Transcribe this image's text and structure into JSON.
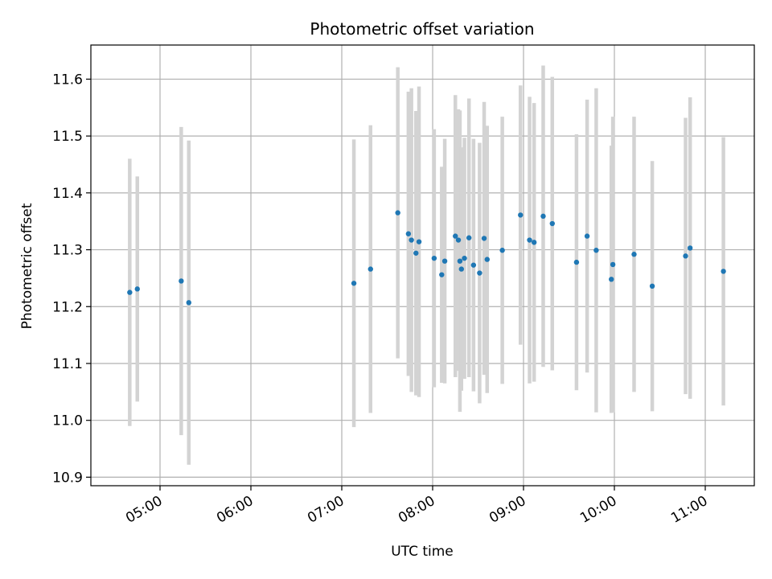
{
  "chart_data": {
    "type": "scatter",
    "title": "Photometric offset variation",
    "xlabel": "UTC time",
    "ylabel": "Photometric offset",
    "x_unit": "UTC hh:mm",
    "xlim": [
      "04:40",
      "12:00"
    ],
    "ylim": [
      10.885,
      11.66
    ],
    "x_ticks": [
      "05:00",
      "06:00",
      "07:00",
      "08:00",
      "09:00",
      "10:00",
      "11:00"
    ],
    "y_ticks": [
      10.9,
      11.0,
      11.1,
      11.2,
      11.3,
      11.4,
      11.5,
      11.6
    ],
    "grid": true,
    "legend": "none",
    "colors": {
      "point": "#1f77b4",
      "errorbar": "#d3d3d3",
      "grid": "#b0b0b0"
    },
    "points": [
      {
        "x": "04:40",
        "y": 11.225,
        "err": 0.235
      },
      {
        "x": "04:45",
        "y": 11.231,
        "err": 0.198
      },
      {
        "x": "05:14",
        "y": 11.245,
        "err": 0.271
      },
      {
        "x": "05:19",
        "y": 11.207,
        "err": 0.285
      },
      {
        "x": "07:08",
        "y": 11.241,
        "err": 0.253
      },
      {
        "x": "07:19",
        "y": 11.266,
        "err": 0.253
      },
      {
        "x": "07:37",
        "y": 11.365,
        "err": 0.256
      },
      {
        "x": "07:44",
        "y": 11.328,
        "err": 0.25
      },
      {
        "x": "07:46",
        "y": 11.317,
        "err": 0.267
      },
      {
        "x": "07:49",
        "y": 11.294,
        "err": 0.25
      },
      {
        "x": "07:51",
        "y": 11.314,
        "err": 0.273
      },
      {
        "x": "08:01",
        "y": 11.285,
        "err": 0.227
      },
      {
        "x": "08:06",
        "y": 11.256,
        "err": 0.19
      },
      {
        "x": "08:08",
        "y": 11.28,
        "err": 0.215
      },
      {
        "x": "08:15",
        "y": 11.324,
        "err": 0.248
      },
      {
        "x": "08:17",
        "y": 11.317,
        "err": 0.23
      },
      {
        "x": "08:18",
        "y": 11.28,
        "err": 0.265
      },
      {
        "x": "08:19",
        "y": 11.266,
        "err": 0.214
      },
      {
        "x": "08:21",
        "y": 11.285,
        "err": 0.212
      },
      {
        "x": "08:24",
        "y": 11.321,
        "err": 0.245
      },
      {
        "x": "08:27",
        "y": 11.273,
        "err": 0.222
      },
      {
        "x": "08:31",
        "y": 11.259,
        "err": 0.229
      },
      {
        "x": "08:34",
        "y": 11.32,
        "err": 0.24
      },
      {
        "x": "08:36",
        "y": 11.283,
        "err": 0.235
      },
      {
        "x": "08:46",
        "y": 11.299,
        "err": 0.235
      },
      {
        "x": "08:58",
        "y": 11.361,
        "err": 0.228
      },
      {
        "x": "09:04",
        "y": 11.317,
        "err": 0.252
      },
      {
        "x": "09:07",
        "y": 11.313,
        "err": 0.245
      },
      {
        "x": "09:13",
        "y": 11.359,
        "err": 0.265
      },
      {
        "x": "09:19",
        "y": 11.346,
        "err": 0.258
      },
      {
        "x": "09:35",
        "y": 11.278,
        "err": 0.225
      },
      {
        "x": "09:42",
        "y": 11.324,
        "err": 0.24
      },
      {
        "x": "09:48",
        "y": 11.299,
        "err": 0.285
      },
      {
        "x": "09:58",
        "y": 11.248,
        "err": 0.235
      },
      {
        "x": "09:59",
        "y": 11.274,
        "err": 0.26
      },
      {
        "x": "10:13",
        "y": 11.292,
        "err": 0.242
      },
      {
        "x": "10:25",
        "y": 11.236,
        "err": 0.22
      },
      {
        "x": "10:47",
        "y": 11.289,
        "err": 0.243
      },
      {
        "x": "10:50",
        "y": 11.303,
        "err": 0.265
      },
      {
        "x": "11:12",
        "y": 11.262,
        "err": 0.236
      }
    ]
  }
}
